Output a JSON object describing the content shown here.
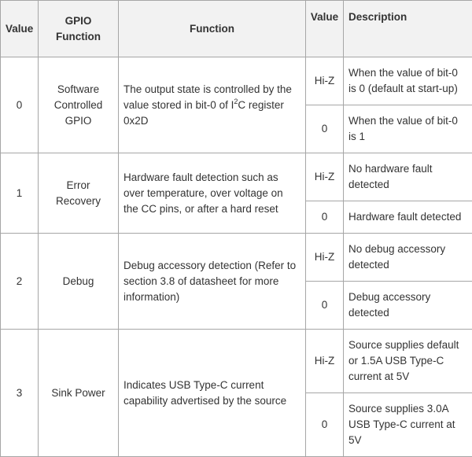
{
  "headers": [
    "Value",
    "GPIO Function",
    "Function",
    "Value",
    "Description"
  ],
  "rows": [
    {
      "value": "0",
      "gpio_function": "Software Controlled GPIO",
      "function_parts": [
        {
          "t": "The output state is controlled by the value stored in bit-0 of I"
        },
        {
          "t": "2",
          "sup": true
        },
        {
          "t": "C register 0x2D"
        }
      ],
      "states": [
        {
          "value": "Hi-Z",
          "description": "When the value of bit-0 is 0 (default at start-up)"
        },
        {
          "value": "0",
          "description": "When the value of bit-0 is 1"
        }
      ]
    },
    {
      "value": "1",
      "gpio_function": "Error Recovery",
      "function_parts": [
        {
          "t": "Hardware fault detection such as over temperature, over voltage on the CC pins, or after a hard reset"
        }
      ],
      "states": [
        {
          "value": "Hi-Z",
          "description": "No hardware fault detected"
        },
        {
          "value": "0",
          "description": "Hardware fault detected"
        }
      ]
    },
    {
      "value": "2",
      "gpio_function": "Debug",
      "function_parts": [
        {
          "t": "Debug accessory detection (Refer to section 3.8 of datasheet for more information)"
        }
      ],
      "states": [
        {
          "value": "Hi-Z",
          "description": "No debug accessory detected"
        },
        {
          "value": "0",
          "description": "Debug accessory detected"
        }
      ]
    },
    {
      "value": "3",
      "gpio_function": "Sink Power",
      "function_parts": [
        {
          "t": "Indicates USB Type-C current capability advertised by the source"
        }
      ],
      "states": [
        {
          "value": "Hi-Z",
          "description": "Source supplies default or 1.5A USB Type-C current at 5V"
        },
        {
          "value": "0",
          "description": "Source supplies 3.0A USB Type-C current at 5V"
        }
      ]
    }
  ]
}
